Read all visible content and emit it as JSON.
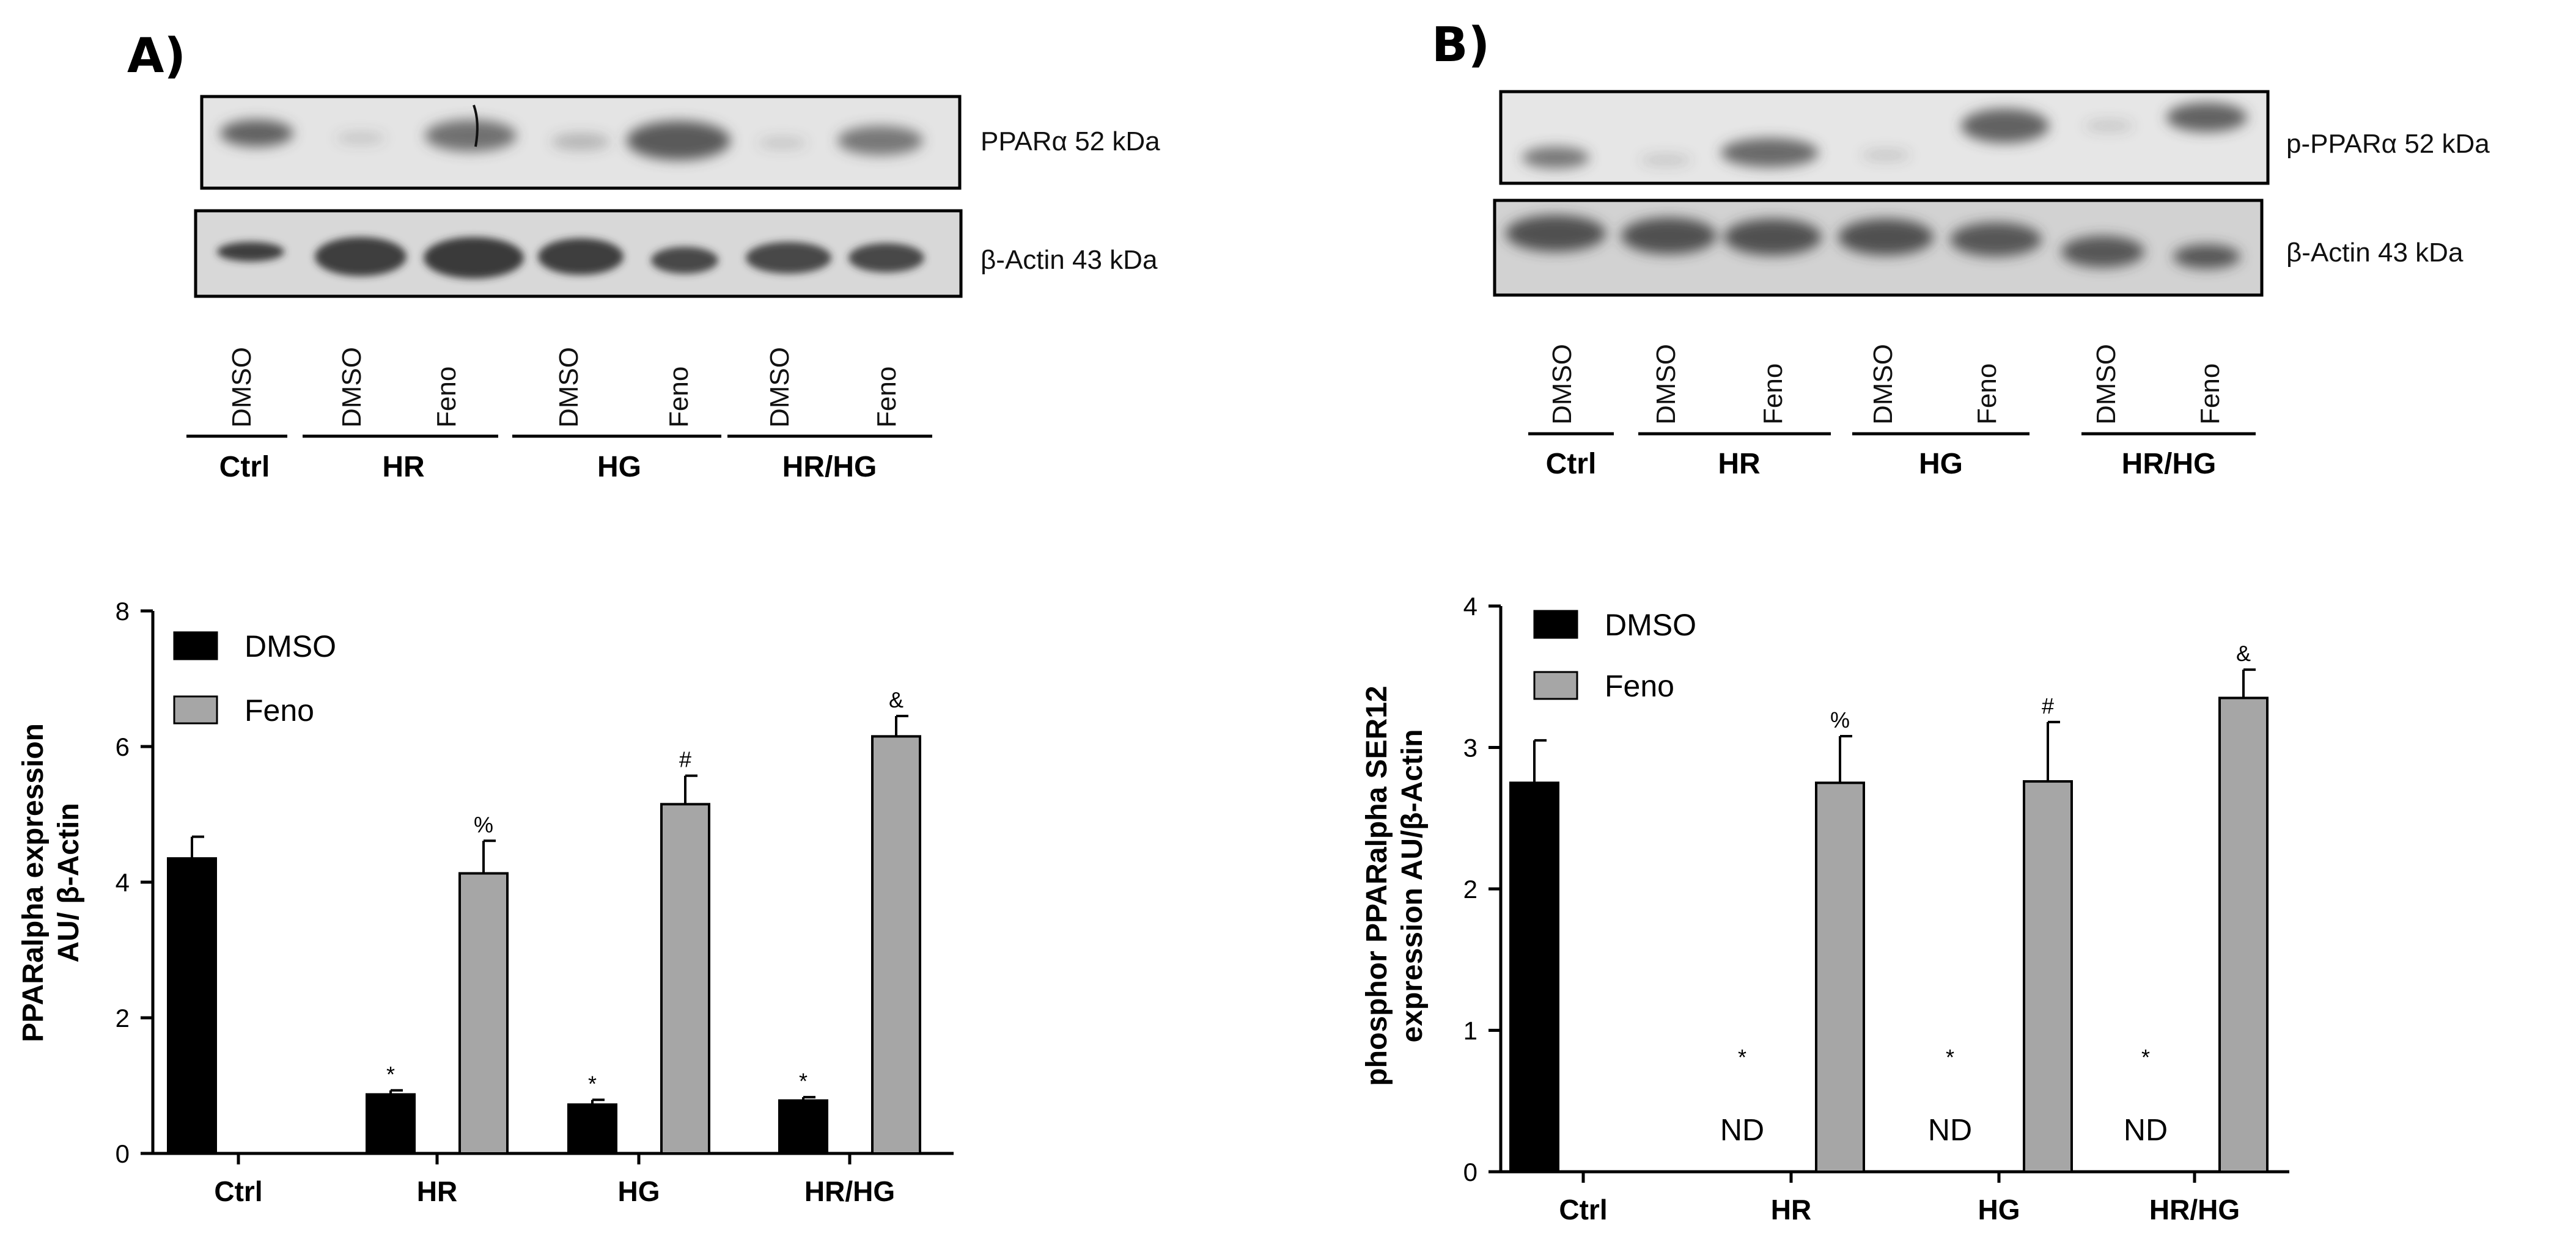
{
  "panels": [
    {
      "letter": "A)",
      "blot_labels": [
        "PPARα 52 kDa",
        "β-Actin 43 kDa"
      ],
      "lanes": [
        "DMSO",
        "DMSO",
        "Feno",
        "DMSO",
        "Feno",
        "DMSO",
        "Feno"
      ],
      "groups": [
        "Ctrl",
        "HR",
        "HG",
        "HR/HG"
      ]
    },
    {
      "letter": "B)",
      "blot_labels": [
        "p-PPARα 52 kDa",
        "β-Actin 43 kDa"
      ],
      "lanes": [
        "DMSO",
        "DMSO",
        "Feno",
        "DMSO",
        "Feno",
        "DMSO",
        "Feno"
      ],
      "groups": [
        "Ctrl",
        "HR",
        "HG",
        "HR/HG"
      ]
    }
  ],
  "chart_data": [
    {
      "type": "bar",
      "ylabel_lines": [
        "PPARalpha expression",
        "AU/ β-Actin"
      ],
      "categories": [
        "Ctrl",
        "HR",
        "HG",
        "HR/HG"
      ],
      "ylim": [
        0,
        8
      ],
      "yticks": [
        0,
        2,
        4,
        6,
        8
      ],
      "legend_position": "top-left",
      "series": [
        {
          "name": "DMSO",
          "color": "#000000",
          "values": [
            4.35,
            0.87,
            0.72,
            0.78
          ],
          "errors": [
            0.32,
            0.06,
            0.07,
            0.05
          ]
        },
        {
          "name": "Feno",
          "color": "#a6a6a6",
          "values": [
            null,
            4.13,
            5.15,
            6.15
          ],
          "errors": [
            null,
            0.48,
            0.42,
            0.3
          ]
        }
      ],
      "annotations": [
        {
          "series": 0,
          "category": 1,
          "text": "*"
        },
        {
          "series": 0,
          "category": 2,
          "text": "*"
        },
        {
          "series": 0,
          "category": 3,
          "text": "*"
        },
        {
          "series": 1,
          "category": 1,
          "text": "%"
        },
        {
          "series": 1,
          "category": 2,
          "text": "#"
        },
        {
          "series": 1,
          "category": 3,
          "text": "&"
        }
      ]
    },
    {
      "type": "bar",
      "ylabel_lines": [
        "phosphor PPARalpha SER12",
        "expression AU/β-Actin"
      ],
      "categories": [
        "Ctrl",
        "HR",
        "HG",
        "HR/HG"
      ],
      "ylim": [
        0,
        4
      ],
      "yticks": [
        0,
        1,
        2,
        3,
        4
      ],
      "legend_position": "top-left",
      "series": [
        {
          "name": "DMSO",
          "color": "#000000",
          "values": [
            2.75,
            null,
            null,
            null
          ],
          "errors": [
            0.3,
            null,
            null,
            null
          ]
        },
        {
          "name": "Feno",
          "color": "#a6a6a6",
          "values": [
            null,
            2.75,
            2.76,
            3.35
          ],
          "errors": [
            null,
            0.33,
            0.42,
            0.2
          ]
        }
      ],
      "annotations": [
        {
          "series": 1,
          "category": 1,
          "text": "%"
        },
        {
          "series": 1,
          "category": 2,
          "text": "#"
        },
        {
          "series": 1,
          "category": 3,
          "text": "&"
        },
        {
          "series": 0,
          "category": 1,
          "text": "*",
          "y": 0.85
        },
        {
          "series": 0,
          "category": 2,
          "text": "*",
          "y": 0.85
        },
        {
          "series": 0,
          "category": 3,
          "text": "*",
          "y": 0.85
        },
        {
          "series": 0,
          "category": 1,
          "text": "ND",
          "y": 0.3
        },
        {
          "series": 0,
          "category": 2,
          "text": "ND",
          "y": 0.3
        },
        {
          "series": 0,
          "category": 3,
          "text": "ND",
          "y": 0.3
        }
      ]
    }
  ]
}
